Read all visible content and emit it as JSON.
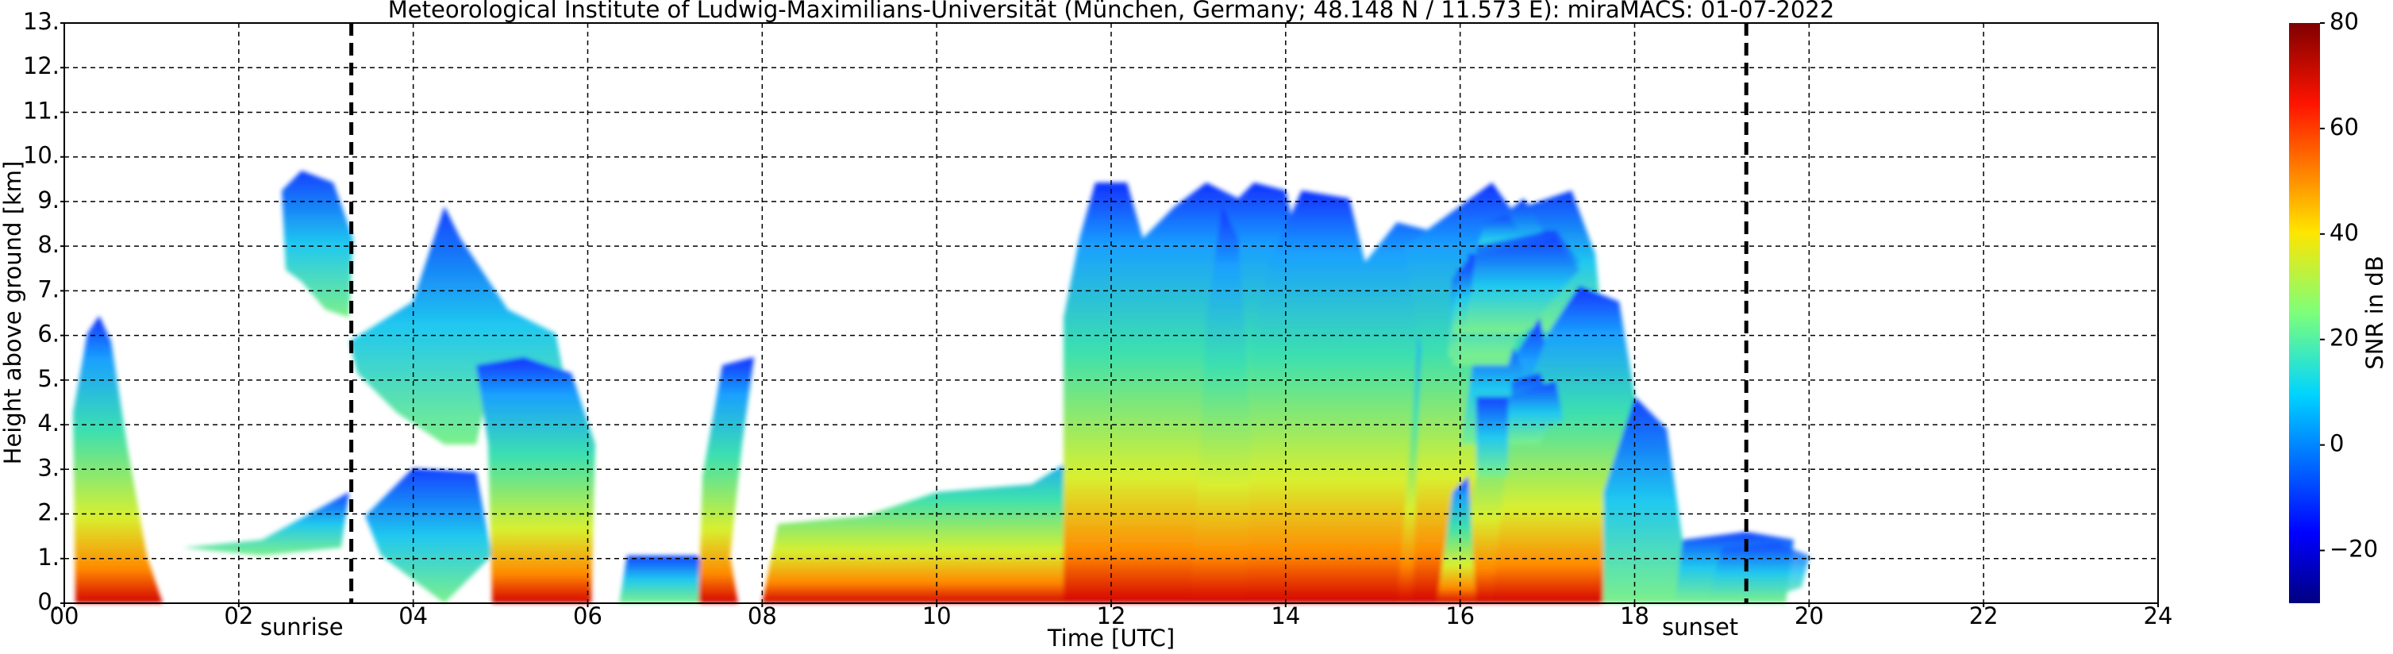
{
  "chart_data": {
    "type": "heatmap",
    "title": "Meteorological Institute of Ludwig-Maximilians-Universität (München, Germany; 48.148 N / 11.573 E):    miraMACS: 01-07-2022",
    "x_label": "Time [UTC]",
    "y_label": "Height above ground [km]",
    "xlim": [
      0,
      24
    ],
    "xticks": [
      {
        "value": 0,
        "label": "00"
      },
      {
        "value": 2,
        "label": "02"
      },
      {
        "value": 4,
        "label": "04"
      },
      {
        "value": 6,
        "label": "06"
      },
      {
        "value": 8,
        "label": "08"
      },
      10,
      12,
      14,
      16,
      18,
      20,
      22,
      24
    ],
    "ylim": [
      0,
      13
    ],
    "yticks": [
      {
        "value": 0,
        "label": "0."
      },
      {
        "value": 1,
        "label": "1."
      },
      {
        "value": 2,
        "label": "2."
      },
      {
        "value": 3,
        "label": "3."
      },
      {
        "value": 4,
        "label": "4."
      },
      {
        "value": 5,
        "label": "5."
      },
      {
        "value": 6,
        "label": "6."
      },
      {
        "value": 7,
        "label": "7."
      },
      {
        "value": 8,
        "label": "8."
      },
      {
        "value": 9,
        "label": "9."
      },
      {
        "value": 10,
        "label": "10."
      },
      {
        "value": 11,
        "label": "11."
      },
      {
        "value": 12,
        "label": "12."
      },
      {
        "value": 13,
        "label": "13."
      }
    ],
    "grid": true,
    "annotations": [
      {
        "label": "sunrise",
        "x": 3.29
      },
      {
        "label": "sunset",
        "x": 19.28
      }
    ],
    "colorbar": {
      "label": "SNR in dB",
      "lim": [
        -30,
        80
      ],
      "ticks": [
        {
          "value": -20,
          "label": "−20"
        },
        0,
        20,
        40,
        60,
        80
      ]
    }
  }
}
